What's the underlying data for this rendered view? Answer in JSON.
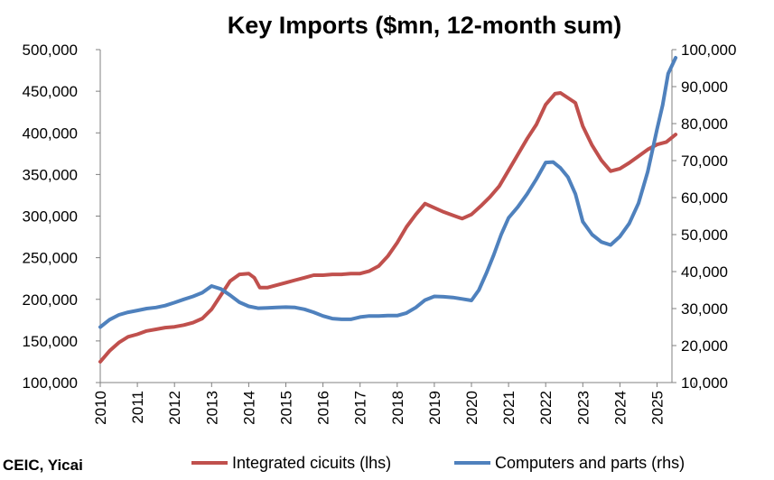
{
  "chart_data": {
    "type": "line",
    "title": "Key Imports ($mn, 12-month sum)",
    "source": "CEIC, Yicai",
    "x_tick_labels": [
      "2010",
      "2011",
      "2012",
      "2013",
      "2014",
      "2015",
      "2016",
      "2017",
      "2018",
      "2019",
      "2020",
      "2021",
      "2022",
      "2023",
      "2024",
      "2025"
    ],
    "xlim": [
      2010,
      2025.5
    ],
    "y_left": {
      "range": [
        100000,
        500000
      ],
      "tick_labels": [
        "100,000",
        "150,000",
        "200,000",
        "250,000",
        "300,000",
        "350,000",
        "400,000",
        "450,000",
        "500,000"
      ],
      "tick_values": [
        100000,
        150000,
        200000,
        250000,
        300000,
        350000,
        400000,
        450000,
        500000
      ]
    },
    "y_right": {
      "range": [
        10000,
        100000
      ],
      "tick_labels": [
        "10,000",
        "20,000",
        "30,000",
        "40,000",
        "50,000",
        "60,000",
        "70,000",
        "80,000",
        "90,000",
        "100,000"
      ],
      "tick_values": [
        10000,
        20000,
        30000,
        40000,
        50000,
        60000,
        70000,
        80000,
        90000,
        100000
      ]
    },
    "grid": false,
    "legend_position": "bottom",
    "series": [
      {
        "name": "Integrated cicuits (lhs)",
        "axis": "left",
        "color": "#c0504d",
        "points": [
          [
            2010.0,
            125000
          ],
          [
            2010.25,
            138000
          ],
          [
            2010.5,
            148000
          ],
          [
            2010.75,
            155000
          ],
          [
            2011.0,
            158000
          ],
          [
            2011.25,
            162000
          ],
          [
            2011.5,
            164000
          ],
          [
            2011.75,
            166000
          ],
          [
            2012.0,
            167000
          ],
          [
            2012.25,
            169000
          ],
          [
            2012.5,
            172000
          ],
          [
            2012.75,
            177000
          ],
          [
            2013.0,
            188000
          ],
          [
            2013.25,
            205000
          ],
          [
            2013.5,
            222000
          ],
          [
            2013.75,
            230000
          ],
          [
            2014.0,
            231000
          ],
          [
            2014.15,
            226000
          ],
          [
            2014.3,
            214000
          ],
          [
            2014.5,
            214000
          ],
          [
            2014.75,
            217000
          ],
          [
            2015.0,
            220000
          ],
          [
            2015.25,
            223000
          ],
          [
            2015.5,
            226000
          ],
          [
            2015.75,
            229000
          ],
          [
            2016.0,
            229000
          ],
          [
            2016.25,
            230000
          ],
          [
            2016.5,
            230000
          ],
          [
            2016.75,
            231000
          ],
          [
            2017.0,
            231000
          ],
          [
            2017.25,
            234000
          ],
          [
            2017.5,
            240000
          ],
          [
            2017.75,
            252000
          ],
          [
            2018.0,
            268000
          ],
          [
            2018.25,
            287000
          ],
          [
            2018.5,
            302000
          ],
          [
            2018.75,
            315000
          ],
          [
            2019.0,
            310000
          ],
          [
            2019.25,
            305000
          ],
          [
            2019.5,
            301000
          ],
          [
            2019.75,
            297000
          ],
          [
            2020.0,
            302000
          ],
          [
            2020.25,
            312000
          ],
          [
            2020.5,
            323000
          ],
          [
            2020.75,
            336000
          ],
          [
            2021.0,
            355000
          ],
          [
            2021.25,
            374000
          ],
          [
            2021.5,
            393000
          ],
          [
            2021.75,
            410000
          ],
          [
            2022.0,
            434000
          ],
          [
            2022.25,
            447000
          ],
          [
            2022.4,
            448000
          ],
          [
            2022.6,
            442000
          ],
          [
            2022.8,
            436000
          ],
          [
            2023.0,
            408000
          ],
          [
            2023.25,
            385000
          ],
          [
            2023.5,
            367000
          ],
          [
            2023.75,
            354000
          ],
          [
            2024.0,
            357000
          ],
          [
            2024.25,
            364000
          ],
          [
            2024.5,
            372000
          ],
          [
            2024.75,
            380000
          ],
          [
            2025.0,
            386000
          ],
          [
            2025.25,
            389000
          ],
          [
            2025.5,
            398000
          ]
        ]
      },
      {
        "name": "Computers and parts (rhs)",
        "axis": "right",
        "color": "#4f81bd",
        "points": [
          [
            2010.0,
            25000
          ],
          [
            2010.25,
            27000
          ],
          [
            2010.5,
            28300
          ],
          [
            2010.75,
            29000
          ],
          [
            2011.0,
            29500
          ],
          [
            2011.25,
            30000
          ],
          [
            2011.5,
            30300
          ],
          [
            2011.75,
            30800
          ],
          [
            2012.0,
            31600
          ],
          [
            2012.25,
            32500
          ],
          [
            2012.5,
            33300
          ],
          [
            2012.75,
            34300
          ],
          [
            2013.0,
            36100
          ],
          [
            2013.25,
            35300
          ],
          [
            2013.5,
            33600
          ],
          [
            2013.75,
            31700
          ],
          [
            2014.0,
            30600
          ],
          [
            2014.25,
            30100
          ],
          [
            2014.5,
            30200
          ],
          [
            2014.75,
            30300
          ],
          [
            2015.0,
            30400
          ],
          [
            2015.25,
            30300
          ],
          [
            2015.5,
            29800
          ],
          [
            2015.75,
            29000
          ],
          [
            2016.0,
            28000
          ],
          [
            2016.25,
            27300
          ],
          [
            2016.5,
            27100
          ],
          [
            2016.75,
            27100
          ],
          [
            2017.0,
            27700
          ],
          [
            2017.25,
            28000
          ],
          [
            2017.5,
            28000
          ],
          [
            2017.75,
            28100
          ],
          [
            2018.0,
            28100
          ],
          [
            2018.25,
            28800
          ],
          [
            2018.5,
            30300
          ],
          [
            2018.75,
            32300
          ],
          [
            2019.0,
            33300
          ],
          [
            2019.25,
            33200
          ],
          [
            2019.5,
            33000
          ],
          [
            2019.75,
            32600
          ],
          [
            2020.0,
            32200
          ],
          [
            2020.2,
            35000
          ],
          [
            2020.4,
            39500
          ],
          [
            2020.6,
            44500
          ],
          [
            2020.8,
            50000
          ],
          [
            2021.0,
            54500
          ],
          [
            2021.25,
            57500
          ],
          [
            2021.5,
            61000
          ],
          [
            2021.75,
            65000
          ],
          [
            2022.0,
            69500
          ],
          [
            2022.2,
            69600
          ],
          [
            2022.4,
            68000
          ],
          [
            2022.6,
            65500
          ],
          [
            2022.8,
            61000
          ],
          [
            2023.0,
            53500
          ],
          [
            2023.25,
            50000
          ],
          [
            2023.5,
            48000
          ],
          [
            2023.75,
            47200
          ],
          [
            2024.0,
            49500
          ],
          [
            2024.25,
            53000
          ],
          [
            2024.5,
            58500
          ],
          [
            2024.75,
            67000
          ],
          [
            2025.0,
            78500
          ],
          [
            2025.15,
            85000
          ],
          [
            2025.3,
            93500
          ],
          [
            2025.5,
            97800
          ]
        ]
      }
    ]
  }
}
